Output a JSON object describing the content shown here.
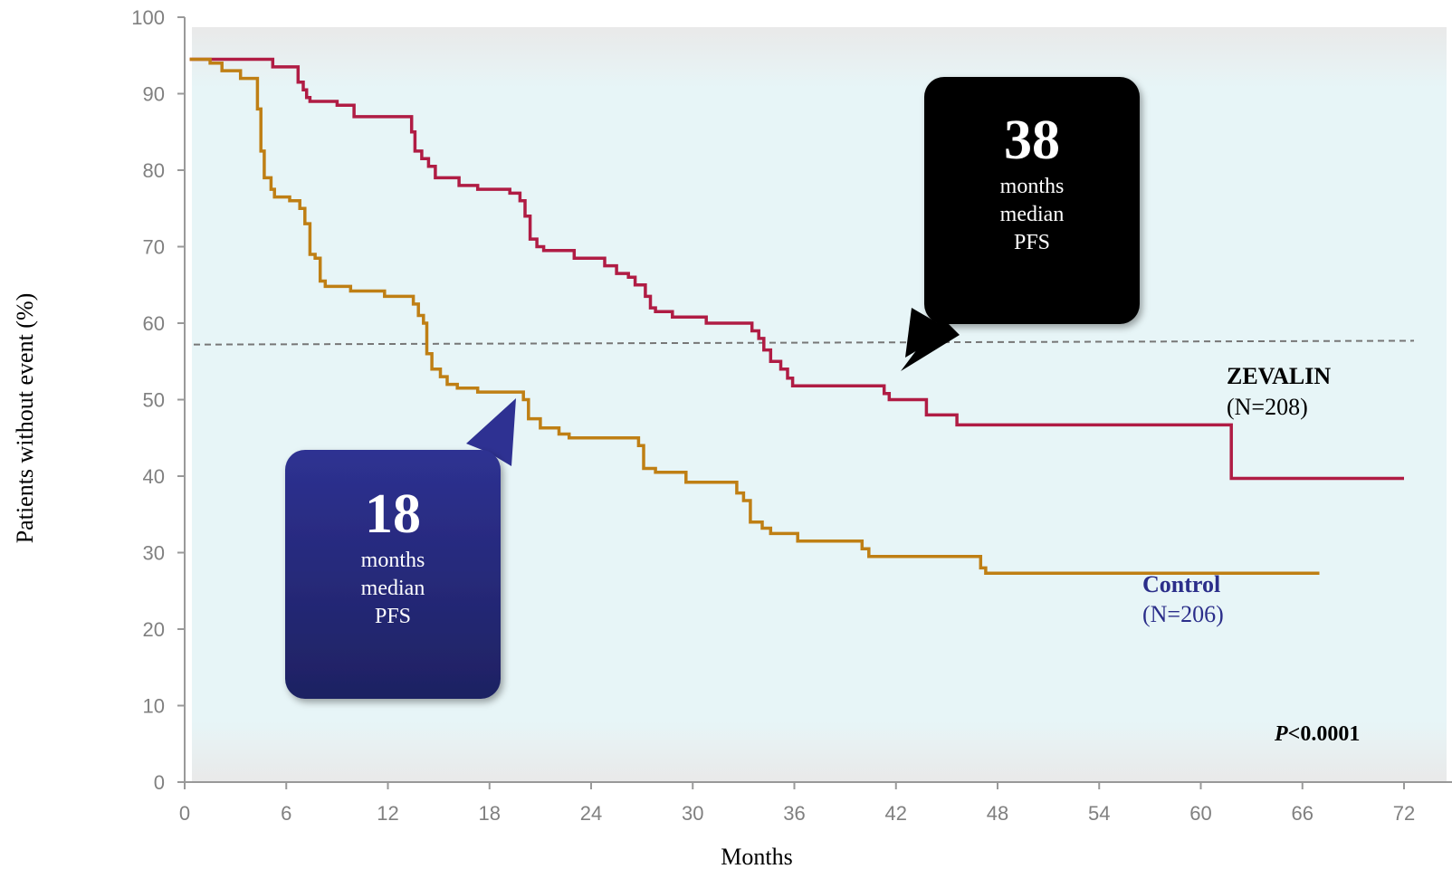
{
  "chart_data": {
    "type": "line",
    "title": "",
    "xlabel": "Months",
    "ylabel": "Patients without event (%)",
    "xlim": [
      0,
      72
    ],
    "ylim": [
      0,
      100
    ],
    "xticks": [
      0,
      6,
      12,
      18,
      24,
      30,
      36,
      42,
      48,
      54,
      60,
      66,
      72
    ],
    "yticks": [
      0,
      10,
      20,
      30,
      40,
      50,
      60,
      70,
      80,
      90,
      100
    ],
    "grid": false,
    "series": [
      {
        "name": "ZEVALIN",
        "n_label": "(N=208)",
        "color": "#b01c44",
        "step_points": [
          [
            0.3,
            94.5
          ],
          [
            5.2,
            94.5
          ],
          [
            5.2,
            93.5
          ],
          [
            6.7,
            93.5
          ],
          [
            6.7,
            91.5
          ],
          [
            7.0,
            91.5
          ],
          [
            7.0,
            90.5
          ],
          [
            7.2,
            90.5
          ],
          [
            7.2,
            89.5
          ],
          [
            7.4,
            89.5
          ],
          [
            7.4,
            89.0
          ],
          [
            9.0,
            89.0
          ],
          [
            9.0,
            88.5
          ],
          [
            10.0,
            88.5
          ],
          [
            10.0,
            87.0
          ],
          [
            13.4,
            87.0
          ],
          [
            13.4,
            85.0
          ],
          [
            13.6,
            85.0
          ],
          [
            13.6,
            82.5
          ],
          [
            14.0,
            82.5
          ],
          [
            14.0,
            81.5
          ],
          [
            14.4,
            81.5
          ],
          [
            14.4,
            80.5
          ],
          [
            14.8,
            80.5
          ],
          [
            14.8,
            79.0
          ],
          [
            16.2,
            79.0
          ],
          [
            16.2,
            78.0
          ],
          [
            17.3,
            78.0
          ],
          [
            17.3,
            77.5
          ],
          [
            19.2,
            77.5
          ],
          [
            19.2,
            77.0
          ],
          [
            19.8,
            77.0
          ],
          [
            19.8,
            76.0
          ],
          [
            20.1,
            76.0
          ],
          [
            20.1,
            74.0
          ],
          [
            20.4,
            74.0
          ],
          [
            20.4,
            71.0
          ],
          [
            20.8,
            71.0
          ],
          [
            20.8,
            70.0
          ],
          [
            21.2,
            70.0
          ],
          [
            21.2,
            69.5
          ],
          [
            23.0,
            69.5
          ],
          [
            23.0,
            68.5
          ],
          [
            24.8,
            68.5
          ],
          [
            24.8,
            67.5
          ],
          [
            25.5,
            67.5
          ],
          [
            25.5,
            66.5
          ],
          [
            26.2,
            66.5
          ],
          [
            26.2,
            66.0
          ],
          [
            26.6,
            66.0
          ],
          [
            26.6,
            65.0
          ],
          [
            27.2,
            65.0
          ],
          [
            27.2,
            63.5
          ],
          [
            27.5,
            63.5
          ],
          [
            27.5,
            62.0
          ],
          [
            27.8,
            62.0
          ],
          [
            27.8,
            61.5
          ],
          [
            28.8,
            61.5
          ],
          [
            28.8,
            60.8
          ],
          [
            30.8,
            60.8
          ],
          [
            30.8,
            60.0
          ],
          [
            33.5,
            60.0
          ],
          [
            33.5,
            59.0
          ],
          [
            33.9,
            59.0
          ],
          [
            33.9,
            58.0
          ],
          [
            34.2,
            58.0
          ],
          [
            34.2,
            56.5
          ],
          [
            34.6,
            56.5
          ],
          [
            34.6,
            55.0
          ],
          [
            35.2,
            55.0
          ],
          [
            35.2,
            54.0
          ],
          [
            35.6,
            54.0
          ],
          [
            35.6,
            52.8
          ],
          [
            35.9,
            52.8
          ],
          [
            35.9,
            51.8
          ],
          [
            41.3,
            51.8
          ],
          [
            41.3,
            50.8
          ],
          [
            41.6,
            50.8
          ],
          [
            41.6,
            50.0
          ],
          [
            43.8,
            50.0
          ],
          [
            43.8,
            48.0
          ],
          [
            45.6,
            48.0
          ],
          [
            45.6,
            46.7
          ],
          [
            61.8,
            46.7
          ],
          [
            61.8,
            39.7
          ],
          [
            72.0,
            39.7
          ]
        ]
      },
      {
        "name": "Control",
        "n_label": "(N=206)",
        "color": "#bf7f14",
        "step_points": [
          [
            0.3,
            94.5
          ],
          [
            1.5,
            94.5
          ],
          [
            1.5,
            94.0
          ],
          [
            2.2,
            94.0
          ],
          [
            2.2,
            93.0
          ],
          [
            3.3,
            93.0
          ],
          [
            3.3,
            92.0
          ],
          [
            4.3,
            92.0
          ],
          [
            4.3,
            88.0
          ],
          [
            4.5,
            88.0
          ],
          [
            4.5,
            82.5
          ],
          [
            4.7,
            82.5
          ],
          [
            4.7,
            79.0
          ],
          [
            5.1,
            79.0
          ],
          [
            5.1,
            77.5
          ],
          [
            5.3,
            77.5
          ],
          [
            5.3,
            76.5
          ],
          [
            6.2,
            76.5
          ],
          [
            6.2,
            76.0
          ],
          [
            6.8,
            76.0
          ],
          [
            6.8,
            75.0
          ],
          [
            7.1,
            75.0
          ],
          [
            7.1,
            73.0
          ],
          [
            7.4,
            73.0
          ],
          [
            7.4,
            69.0
          ],
          [
            7.7,
            69.0
          ],
          [
            7.7,
            68.5
          ],
          [
            8.0,
            68.5
          ],
          [
            8.0,
            65.5
          ],
          [
            8.3,
            65.5
          ],
          [
            8.3,
            64.8
          ],
          [
            9.8,
            64.8
          ],
          [
            9.8,
            64.2
          ],
          [
            11.8,
            64.2
          ],
          [
            11.8,
            63.5
          ],
          [
            13.5,
            63.5
          ],
          [
            13.5,
            62.5
          ],
          [
            13.8,
            62.5
          ],
          [
            13.8,
            61.0
          ],
          [
            14.1,
            61.0
          ],
          [
            14.1,
            60.0
          ],
          [
            14.3,
            60.0
          ],
          [
            14.3,
            56.0
          ],
          [
            14.6,
            56.0
          ],
          [
            14.6,
            54.0
          ],
          [
            15.1,
            54.0
          ],
          [
            15.1,
            53.0
          ],
          [
            15.5,
            53.0
          ],
          [
            15.5,
            52.0
          ],
          [
            16.1,
            52.0
          ],
          [
            16.1,
            51.5
          ],
          [
            17.3,
            51.5
          ],
          [
            17.3,
            51.0
          ],
          [
            20.0,
            51.0
          ],
          [
            20.0,
            50.0
          ],
          [
            20.3,
            50.0
          ],
          [
            20.3,
            47.5
          ],
          [
            21.0,
            47.5
          ],
          [
            21.0,
            46.3
          ],
          [
            22.1,
            46.3
          ],
          [
            22.1,
            45.5
          ],
          [
            22.7,
            45.5
          ],
          [
            22.7,
            45.0
          ],
          [
            26.8,
            45.0
          ],
          [
            26.8,
            44.0
          ],
          [
            27.1,
            44.0
          ],
          [
            27.1,
            41.0
          ],
          [
            27.8,
            41.0
          ],
          [
            27.8,
            40.5
          ],
          [
            29.6,
            40.5
          ],
          [
            29.6,
            39.2
          ],
          [
            32.6,
            39.2
          ],
          [
            32.6,
            37.8
          ],
          [
            33.0,
            37.8
          ],
          [
            33.0,
            36.8
          ],
          [
            33.4,
            36.8
          ],
          [
            33.4,
            34.0
          ],
          [
            34.1,
            34.0
          ],
          [
            34.1,
            33.2
          ],
          [
            34.6,
            33.2
          ],
          [
            34.6,
            32.5
          ],
          [
            36.2,
            32.5
          ],
          [
            36.2,
            31.5
          ],
          [
            40.0,
            31.5
          ],
          [
            40.0,
            30.5
          ],
          [
            40.4,
            30.5
          ],
          [
            40.4,
            29.5
          ],
          [
            47.0,
            29.5
          ],
          [
            47.0,
            28.0
          ],
          [
            47.3,
            28.0
          ],
          [
            47.3,
            27.3
          ],
          [
            67.0,
            27.3
          ]
        ]
      }
    ],
    "reference_line": {
      "y_start": 57.2,
      "y_end": 57.7,
      "style": "dashed",
      "color": "#777777"
    },
    "callouts": [
      {
        "value": "38",
        "lines": [
          "months",
          "median",
          "PFS"
        ],
        "color": "#000000",
        "target_x": 42,
        "target_y": 57.5
      },
      {
        "value": "18",
        "lines": [
          "months",
          "median",
          "PFS"
        ],
        "color": "#2b2e8a",
        "target_x": 19.2,
        "target_y": 50.8
      }
    ],
    "annotation": {
      "italic": "P",
      "rest": "<0.0001"
    },
    "background_gradient": [
      "#e8e8e8",
      "#e6f4f6"
    ]
  }
}
